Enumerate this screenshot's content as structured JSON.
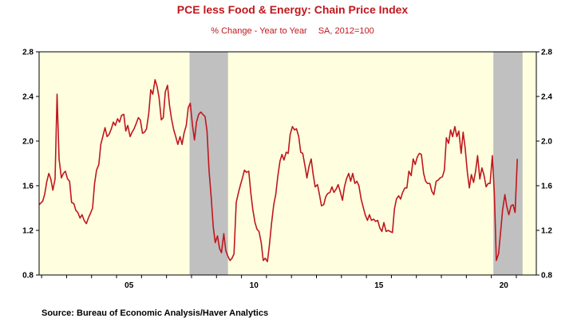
{
  "chart_data": {
    "type": "line",
    "title": "PCE less Food & Energy: Chain Price Index",
    "subtitle_left": "% Change - Year to Year",
    "subtitle_right": "SA, 2012=100",
    "source": "Source:  Bureau of Economic Analysis/Haver Analytics",
    "ylim": [
      0.8,
      2.8
    ],
    "y_ticks": [
      {
        "value": 0.8,
        "label": "0.8"
      },
      {
        "value": 1.2,
        "label": "1.2"
      },
      {
        "value": 1.6,
        "label": "1.6"
      },
      {
        "value": 2.0,
        "label": "2.0"
      },
      {
        "value": 2.4,
        "label": "2.4"
      },
      {
        "value": 2.8,
        "label": "2.8"
      }
    ],
    "xlim": [
      2001.9,
      2021.8
    ],
    "x_ticks": [
      {
        "value": 2005.5,
        "label": "05"
      },
      {
        "value": 2010.5,
        "label": "10"
      },
      {
        "value": 2015.5,
        "label": "15"
      },
      {
        "value": 2020.5,
        "label": "20"
      }
    ],
    "recessions": [
      {
        "start": 2007.92,
        "end": 2009.46
      },
      {
        "start": 2020.08,
        "end": 2021.25
      }
    ],
    "grid": false,
    "colors": {
      "plot_background": "#ffffe0",
      "recession": "#c0c0c0",
      "series": "#c0171d",
      "title": "#c0171d"
    },
    "series": [
      {
        "color": "#c0171d",
        "points": [
          [
            2001.9,
            1.43
          ],
          [
            2002.04,
            1.46
          ],
          [
            2002.12,
            1.52
          ],
          [
            2002.21,
            1.64
          ],
          [
            2002.29,
            1.71
          ],
          [
            2002.37,
            1.66
          ],
          [
            2002.45,
            1.56
          ],
          [
            2002.54,
            1.66
          ],
          [
            2002.62,
            2.42
          ],
          [
            2002.7,
            1.84
          ],
          [
            2002.79,
            1.67
          ],
          [
            2002.87,
            1.71
          ],
          [
            2002.95,
            1.73
          ],
          [
            2003.04,
            1.66
          ],
          [
            2003.12,
            1.64
          ],
          [
            2003.2,
            1.45
          ],
          [
            2003.29,
            1.44
          ],
          [
            2003.37,
            1.38
          ],
          [
            2003.45,
            1.36
          ],
          [
            2003.54,
            1.31
          ],
          [
            2003.62,
            1.34
          ],
          [
            2003.7,
            1.29
          ],
          [
            2003.79,
            1.26
          ],
          [
            2003.87,
            1.31
          ],
          [
            2003.95,
            1.35
          ],
          [
            2004.04,
            1.4
          ],
          [
            2004.12,
            1.62
          ],
          [
            2004.2,
            1.74
          ],
          [
            2004.29,
            1.79
          ],
          [
            2004.37,
            1.97
          ],
          [
            2004.45,
            2.04
          ],
          [
            2004.54,
            2.12
          ],
          [
            2004.62,
            2.04
          ],
          [
            2004.7,
            2.06
          ],
          [
            2004.79,
            2.11
          ],
          [
            2004.87,
            2.17
          ],
          [
            2004.95,
            2.14
          ],
          [
            2005.04,
            2.2
          ],
          [
            2005.12,
            2.17
          ],
          [
            2005.2,
            2.23
          ],
          [
            2005.29,
            2.24
          ],
          [
            2005.37,
            2.09
          ],
          [
            2005.45,
            2.14
          ],
          [
            2005.54,
            2.04
          ],
          [
            2005.62,
            2.08
          ],
          [
            2005.7,
            2.11
          ],
          [
            2005.79,
            2.16
          ],
          [
            2005.87,
            2.21
          ],
          [
            2005.95,
            2.19
          ],
          [
            2006.04,
            2.07
          ],
          [
            2006.12,
            2.08
          ],
          [
            2006.2,
            2.11
          ],
          [
            2006.29,
            2.25
          ],
          [
            2006.37,
            2.46
          ],
          [
            2006.45,
            2.42
          ],
          [
            2006.54,
            2.55
          ],
          [
            2006.62,
            2.49
          ],
          [
            2006.7,
            2.39
          ],
          [
            2006.79,
            2.19
          ],
          [
            2006.87,
            2.21
          ],
          [
            2006.95,
            2.44
          ],
          [
            2007.04,
            2.5
          ],
          [
            2007.12,
            2.32
          ],
          [
            2007.2,
            2.2
          ],
          [
            2007.29,
            2.1
          ],
          [
            2007.37,
            2.04
          ],
          [
            2007.45,
            1.97
          ],
          [
            2007.54,
            2.04
          ],
          [
            2007.62,
            1.97
          ],
          [
            2007.7,
            2.07
          ],
          [
            2007.79,
            2.14
          ],
          [
            2007.87,
            2.3
          ],
          [
            2007.95,
            2.34
          ],
          [
            2008.04,
            2.14
          ],
          [
            2008.12,
            2.01
          ],
          [
            2008.2,
            2.17
          ],
          [
            2008.29,
            2.24
          ],
          [
            2008.37,
            2.26
          ],
          [
            2008.45,
            2.24
          ],
          [
            2008.54,
            2.22
          ],
          [
            2008.62,
            2.09
          ],
          [
            2008.7,
            1.74
          ],
          [
            2008.79,
            1.49
          ],
          [
            2008.87,
            1.23
          ],
          [
            2008.95,
            1.09
          ],
          [
            2009.04,
            1.15
          ],
          [
            2009.12,
            1.04
          ],
          [
            2009.2,
            1.0
          ],
          [
            2009.29,
            1.17
          ],
          [
            2009.37,
            1.02
          ],
          [
            2009.45,
            0.97
          ],
          [
            2009.54,
            0.93
          ],
          [
            2009.62,
            0.95
          ],
          [
            2009.7,
            0.99
          ],
          [
            2009.79,
            1.45
          ],
          [
            2009.87,
            1.53
          ],
          [
            2009.95,
            1.6
          ],
          [
            2010.04,
            1.67
          ],
          [
            2010.12,
            1.74
          ],
          [
            2010.2,
            1.72
          ],
          [
            2010.29,
            1.73
          ],
          [
            2010.37,
            1.54
          ],
          [
            2010.45,
            1.39
          ],
          [
            2010.54,
            1.27
          ],
          [
            2010.62,
            1.21
          ],
          [
            2010.7,
            1.19
          ],
          [
            2010.79,
            1.09
          ],
          [
            2010.87,
            0.93
          ],
          [
            2010.95,
            0.95
          ],
          [
            2011.04,
            0.92
          ],
          [
            2011.12,
            1.07
          ],
          [
            2011.2,
            1.26
          ],
          [
            2011.29,
            1.43
          ],
          [
            2011.37,
            1.52
          ],
          [
            2011.45,
            1.68
          ],
          [
            2011.54,
            1.82
          ],
          [
            2011.62,
            1.88
          ],
          [
            2011.7,
            1.83
          ],
          [
            2011.79,
            1.9
          ],
          [
            2011.87,
            1.89
          ],
          [
            2011.95,
            2.06
          ],
          [
            2012.04,
            2.13
          ],
          [
            2012.12,
            2.1
          ],
          [
            2012.2,
            2.11
          ],
          [
            2012.29,
            2.04
          ],
          [
            2012.37,
            1.9
          ],
          [
            2012.45,
            1.89
          ],
          [
            2012.54,
            1.78
          ],
          [
            2012.62,
            1.67
          ],
          [
            2012.7,
            1.77
          ],
          [
            2012.79,
            1.84
          ],
          [
            2012.87,
            1.7
          ],
          [
            2012.95,
            1.59
          ],
          [
            2013.04,
            1.61
          ],
          [
            2013.12,
            1.52
          ],
          [
            2013.2,
            1.42
          ],
          [
            2013.29,
            1.43
          ],
          [
            2013.37,
            1.5
          ],
          [
            2013.45,
            1.53
          ],
          [
            2013.54,
            1.54
          ],
          [
            2013.62,
            1.59
          ],
          [
            2013.7,
            1.54
          ],
          [
            2013.79,
            1.57
          ],
          [
            2013.87,
            1.61
          ],
          [
            2013.95,
            1.55
          ],
          [
            2014.04,
            1.47
          ],
          [
            2014.12,
            1.59
          ],
          [
            2014.2,
            1.66
          ],
          [
            2014.29,
            1.71
          ],
          [
            2014.37,
            1.64
          ],
          [
            2014.45,
            1.71
          ],
          [
            2014.54,
            1.62
          ],
          [
            2014.62,
            1.64
          ],
          [
            2014.7,
            1.6
          ],
          [
            2014.79,
            1.48
          ],
          [
            2014.87,
            1.41
          ],
          [
            2014.95,
            1.34
          ],
          [
            2015.04,
            1.29
          ],
          [
            2015.12,
            1.34
          ],
          [
            2015.2,
            1.29
          ],
          [
            2015.29,
            1.3
          ],
          [
            2015.37,
            1.28
          ],
          [
            2015.45,
            1.29
          ],
          [
            2015.54,
            1.22
          ],
          [
            2015.62,
            1.19
          ],
          [
            2015.7,
            1.27
          ],
          [
            2015.79,
            1.19
          ],
          [
            2015.87,
            1.2
          ],
          [
            2015.95,
            1.19
          ],
          [
            2016.04,
            1.18
          ],
          [
            2016.12,
            1.39
          ],
          [
            2016.2,
            1.48
          ],
          [
            2016.29,
            1.51
          ],
          [
            2016.37,
            1.48
          ],
          [
            2016.45,
            1.54
          ],
          [
            2016.54,
            1.58
          ],
          [
            2016.62,
            1.58
          ],
          [
            2016.7,
            1.73
          ],
          [
            2016.79,
            1.69
          ],
          [
            2016.87,
            1.84
          ],
          [
            2016.95,
            1.79
          ],
          [
            2017.04,
            1.86
          ],
          [
            2017.12,
            1.89
          ],
          [
            2017.2,
            1.88
          ],
          [
            2017.29,
            1.71
          ],
          [
            2017.37,
            1.64
          ],
          [
            2017.45,
            1.62
          ],
          [
            2017.54,
            1.62
          ],
          [
            2017.62,
            1.55
          ],
          [
            2017.7,
            1.52
          ],
          [
            2017.79,
            1.64
          ],
          [
            2017.87,
            1.65
          ],
          [
            2017.95,
            1.67
          ],
          [
            2018.04,
            1.68
          ],
          [
            2018.12,
            1.74
          ],
          [
            2018.2,
            2.03
          ],
          [
            2018.29,
            1.98
          ],
          [
            2018.37,
            2.1
          ],
          [
            2018.45,
            2.04
          ],
          [
            2018.54,
            2.13
          ],
          [
            2018.62,
            2.04
          ],
          [
            2018.7,
            2.09
          ],
          [
            2018.79,
            1.89
          ],
          [
            2018.87,
            2.08
          ],
          [
            2018.95,
            1.94
          ],
          [
            2019.04,
            1.72
          ],
          [
            2019.12,
            1.58
          ],
          [
            2019.2,
            1.7
          ],
          [
            2019.29,
            1.63
          ],
          [
            2019.37,
            1.73
          ],
          [
            2019.45,
            1.87
          ],
          [
            2019.54,
            1.66
          ],
          [
            2019.62,
            1.76
          ],
          [
            2019.7,
            1.7
          ],
          [
            2019.79,
            1.59
          ],
          [
            2019.87,
            1.62
          ],
          [
            2019.95,
            1.62
          ],
          [
            2020.04,
            1.87
          ],
          [
            2020.12,
            1.53
          ],
          [
            2020.2,
            0.93
          ],
          [
            2020.29,
            0.99
          ],
          [
            2020.37,
            1.18
          ],
          [
            2020.45,
            1.38
          ],
          [
            2020.54,
            1.52
          ],
          [
            2020.62,
            1.41
          ],
          [
            2020.7,
            1.34
          ],
          [
            2020.79,
            1.42
          ],
          [
            2020.87,
            1.43
          ],
          [
            2020.95,
            1.36
          ],
          [
            2021.04,
            1.84
          ]
        ]
      }
    ]
  }
}
